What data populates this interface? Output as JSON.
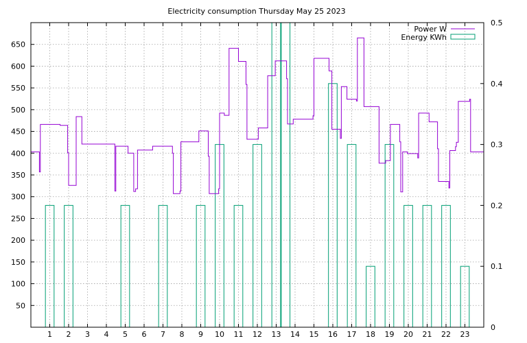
{
  "chart_data": {
    "type": "line",
    "title": "Electricity consumption Thursday May 25 2023",
    "xlabel": "",
    "ylabel": "",
    "xlim": [
      0,
      24
    ],
    "ylim": [
      0,
      700
    ],
    "y2lim": [
      0,
      0.5
    ],
    "x_ticks": [
      1,
      2,
      3,
      4,
      5,
      6,
      7,
      8,
      9,
      10,
      11,
      12,
      13,
      14,
      15,
      16,
      17,
      18,
      19,
      20,
      21,
      22,
      23
    ],
    "y_ticks": [
      50,
      100,
      150,
      200,
      250,
      300,
      350,
      400,
      450,
      500,
      550,
      600,
      650
    ],
    "y2_ticks": [
      0,
      0.1,
      0.2,
      0.3,
      0.4,
      0.5
    ],
    "grid": true,
    "legend": "top-right",
    "series": [
      {
        "name": "Power W",
        "axis": "y",
        "color": "#9400d3",
        "style": "steps",
        "points": [
          [
            0,
            403
          ],
          [
            0.45,
            403
          ],
          [
            0.45,
            357
          ],
          [
            0.5,
            357
          ],
          [
            0.5,
            466
          ],
          [
            1.55,
            466
          ],
          [
            1.55,
            464
          ],
          [
            1.95,
            464
          ],
          [
            1.95,
            401
          ],
          [
            2,
            401
          ],
          [
            2,
            326
          ],
          [
            2.4,
            326
          ],
          [
            2.4,
            484
          ],
          [
            2.7,
            484
          ],
          [
            2.7,
            421
          ],
          [
            4.45,
            421
          ],
          [
            4.45,
            313
          ],
          [
            4.5,
            313
          ],
          [
            4.5,
            416
          ],
          [
            5.15,
            416
          ],
          [
            5.15,
            400
          ],
          [
            5.45,
            400
          ],
          [
            5.45,
            312
          ],
          [
            5.55,
            312
          ],
          [
            5.55,
            318
          ],
          [
            5.65,
            318
          ],
          [
            5.65,
            407
          ],
          [
            6.45,
            407
          ],
          [
            6.45,
            416
          ],
          [
            7.5,
            416
          ],
          [
            7.5,
            400
          ],
          [
            7.55,
            400
          ],
          [
            7.55,
            307
          ],
          [
            7.9,
            307
          ],
          [
            7.9,
            313
          ],
          [
            7.95,
            313
          ],
          [
            7.95,
            426
          ],
          [
            8.9,
            426
          ],
          [
            8.9,
            451
          ],
          [
            9.4,
            451
          ],
          [
            9.4,
            393
          ],
          [
            9.45,
            393
          ],
          [
            9.45,
            307
          ],
          [
            9.95,
            307
          ],
          [
            9.95,
            318
          ],
          [
            10,
            318
          ],
          [
            10,
            492
          ],
          [
            10.25,
            492
          ],
          [
            10.25,
            487
          ],
          [
            10.5,
            487
          ],
          [
            10.5,
            641
          ],
          [
            11,
            641
          ],
          [
            11,
            611
          ],
          [
            11.4,
            611
          ],
          [
            11.4,
            558
          ],
          [
            11.45,
            558
          ],
          [
            11.45,
            432
          ],
          [
            12.05,
            432
          ],
          [
            12.05,
            458
          ],
          [
            12.55,
            458
          ],
          [
            12.55,
            578
          ],
          [
            12.95,
            578
          ],
          [
            12.95,
            612
          ],
          [
            13.55,
            612
          ],
          [
            13.55,
            571
          ],
          [
            13.6,
            571
          ],
          [
            13.6,
            467
          ],
          [
            13.9,
            467
          ],
          [
            13.9,
            478
          ],
          [
            14.95,
            478
          ],
          [
            14.95,
            486
          ],
          [
            15,
            486
          ],
          [
            15,
            618
          ],
          [
            15.8,
            618
          ],
          [
            15.8,
            589
          ],
          [
            15.95,
            589
          ],
          [
            15.95,
            455
          ],
          [
            16.4,
            455
          ],
          [
            16.4,
            434
          ],
          [
            16.45,
            434
          ],
          [
            16.45,
            553
          ],
          [
            16.75,
            553
          ],
          [
            16.75,
            524
          ],
          [
            17.25,
            524
          ],
          [
            17.25,
            520
          ],
          [
            17.3,
            520
          ],
          [
            17.3,
            665
          ],
          [
            17.65,
            665
          ],
          [
            17.65,
            507
          ],
          [
            18.45,
            507
          ],
          [
            18.45,
            377
          ],
          [
            18.8,
            377
          ],
          [
            18.8,
            383
          ],
          [
            19.05,
            383
          ],
          [
            19.05,
            466
          ],
          [
            19.55,
            466
          ],
          [
            19.55,
            426
          ],
          [
            19.6,
            426
          ],
          [
            19.6,
            311
          ],
          [
            19.7,
            311
          ],
          [
            19.7,
            403
          ],
          [
            19.95,
            403
          ],
          [
            19.95,
            399
          ],
          [
            20.5,
            399
          ],
          [
            20.5,
            389
          ],
          [
            20.55,
            389
          ],
          [
            20.55,
            492
          ],
          [
            21.1,
            492
          ],
          [
            21.1,
            472
          ],
          [
            21.55,
            472
          ],
          [
            21.55,
            410
          ],
          [
            21.6,
            410
          ],
          [
            21.6,
            335
          ],
          [
            22.15,
            335
          ],
          [
            22.15,
            320
          ],
          [
            22.2,
            320
          ],
          [
            22.2,
            406
          ],
          [
            22.5,
            406
          ],
          [
            22.5,
            415
          ],
          [
            22.55,
            415
          ],
          [
            22.55,
            425
          ],
          [
            22.65,
            425
          ],
          [
            22.65,
            519
          ],
          [
            23.25,
            519
          ],
          [
            23.25,
            524
          ],
          [
            23.3,
            524
          ],
          [
            23.3,
            403
          ],
          [
            24,
            403
          ]
        ]
      },
      {
        "name": "Energy KWh",
        "axis": "y2",
        "color": "#009e73",
        "style": "boxes",
        "x": [
          1,
          2,
          5,
          7,
          9,
          10,
          11,
          12,
          13,
          13.5,
          16,
          17,
          18,
          19,
          20,
          21,
          22,
          23
        ],
        "values": [
          0.2,
          0.2,
          0.2,
          0.2,
          0.2,
          0.3,
          0.2,
          0.3,
          0.5,
          0.5,
          0.4,
          0.3,
          0.1,
          0.3,
          0.2,
          0.2,
          0.2,
          0.1
        ]
      }
    ]
  }
}
